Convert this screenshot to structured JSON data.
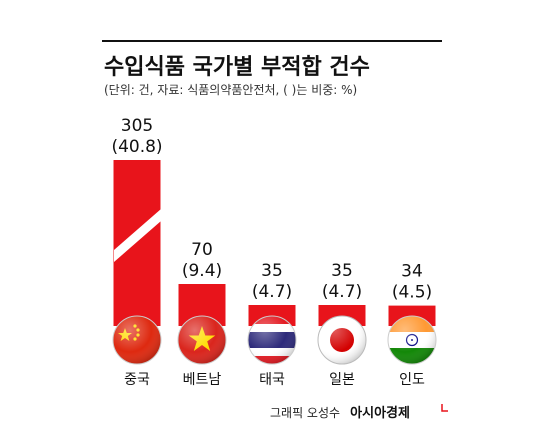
{
  "chart_data": {
    "type": "bar",
    "title": "수입식품 국가별 부적합 건수",
    "subtitle": "(단위: 건, 자료: 식품의약품안전처, ( )는 비중: %)",
    "categories": [
      "중국",
      "베트남",
      "태국",
      "일본",
      "인도"
    ],
    "values": [
      305,
      70,
      35,
      35,
      34
    ],
    "shares": [
      "(40.8)",
      "(9.4)",
      "(4.7)",
      "(4.7)",
      "(4.5)"
    ],
    "value_labels": [
      "305",
      "70",
      "35",
      "35",
      "34"
    ],
    "flag_icons": [
      "china-flag-icon",
      "vietnam-flag-icon",
      "thailand-flag-icon",
      "japan-flag-icon",
      "india-flag-icon"
    ],
    "bar_color": "#e8141b",
    "axis_break_on_first_bar": true
  },
  "credit": {
    "author": "그래픽 오성수",
    "brand": "아시아경제"
  }
}
